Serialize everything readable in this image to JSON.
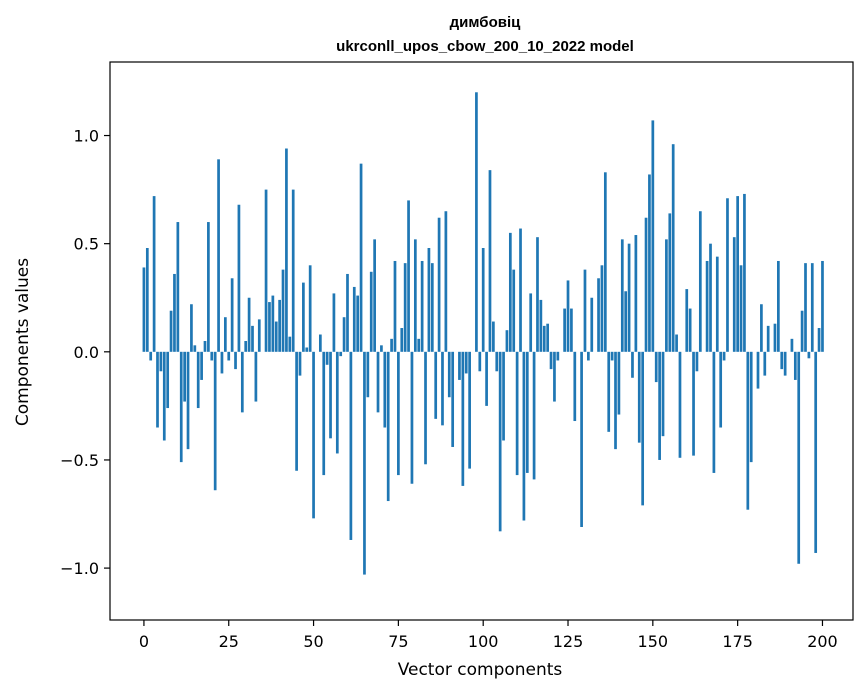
{
  "chart_data": {
    "type": "bar",
    "title": "димбовіц",
    "subtitle": "ukrconll_upos_cbow_200_10_2022 model",
    "xlabel": "Vector components",
    "ylabel": "Components values",
    "xlim": [
      -10,
      209
    ],
    "ylim": [
      -1.24,
      1.34
    ],
    "xticks": [
      0,
      25,
      50,
      75,
      100,
      125,
      150,
      175,
      200
    ],
    "yticks": [
      -1.0,
      -0.5,
      0.0,
      0.5,
      1.0
    ],
    "ytick_labels": [
      "−1.0",
      "−0.5",
      "0.0",
      "0.5",
      "1.0"
    ],
    "bar_color": "#1f77b4",
    "grid": false,
    "values": [
      0.39,
      0.48,
      -0.04,
      0.72,
      -0.35,
      -0.09,
      -0.41,
      -0.26,
      0.19,
      0.36,
      0.6,
      -0.51,
      -0.23,
      -0.45,
      0.22,
      0.03,
      -0.26,
      -0.13,
      0.05,
      0.6,
      -0.04,
      -0.64,
      0.89,
      -0.1,
      0.16,
      -0.04,
      0.34,
      -0.08,
      0.68,
      -0.28,
      0.05,
      0.25,
      0.12,
      -0.23,
      0.15,
      0.0,
      0.75,
      0.23,
      0.26,
      0.14,
      0.24,
      0.38,
      0.94,
      0.07,
      0.75,
      -0.55,
      -0.11,
      0.32,
      0.02,
      0.4,
      -0.77,
      0.0,
      0.08,
      -0.57,
      -0.06,
      -0.4,
      0.27,
      -0.47,
      -0.02,
      0.16,
      0.36,
      -0.87,
      0.3,
      0.26,
      0.87,
      -1.03,
      -0.21,
      0.37,
      0.52,
      -0.28,
      0.03,
      -0.35,
      -0.69,
      0.06,
      0.42,
      -0.57,
      0.11,
      0.41,
      0.7,
      -0.61,
      0.52,
      0.06,
      0.42,
      -0.52,
      0.48,
      0.41,
      -0.31,
      0.62,
      -0.34,
      0.65,
      -0.21,
      -0.44,
      0.0,
      -0.13,
      -0.62,
      -0.1,
      -0.54,
      0.0,
      1.2,
      -0.09,
      0.48,
      -0.25,
      0.84,
      0.14,
      -0.09,
      -0.83,
      -0.41,
      0.1,
      0.55,
      0.38,
      -0.57,
      0.57,
      -0.78,
      -0.56,
      0.27,
      -0.59,
      0.53,
      0.24,
      0.12,
      0.13,
      -0.08,
      -0.23,
      -0.04,
      0.0,
      0.2,
      0.33,
      0.2,
      -0.32,
      0.0,
      -0.81,
      0.38,
      -0.04,
      0.25,
      0.0,
      0.34,
      0.4,
      0.83,
      -0.37,
      -0.04,
      -0.45,
      -0.29,
      0.52,
      0.28,
      0.5,
      -0.12,
      0.54,
      -0.42,
      -0.71,
      0.62,
      0.82,
      1.07,
      -0.14,
      -0.5,
      -0.39,
      0.52,
      0.64,
      0.96,
      0.08,
      -0.49,
      0.0,
      0.29,
      0.2,
      -0.48,
      -0.09,
      0.65,
      0.0,
      0.42,
      0.5,
      -0.56,
      0.44,
      -0.35,
      -0.04,
      0.71,
      0.0,
      0.53,
      0.72,
      0.4,
      0.73,
      -0.73,
      -0.51,
      0.0,
      -0.17,
      0.22,
      -0.11,
      0.12,
      0.0,
      0.13,
      0.42,
      -0.08,
      -0.11,
      0.0,
      0.06,
      -0.13,
      -0.98,
      0.19,
      0.41,
      -0.03,
      0.41,
      -0.93,
      0.11,
      0.42
    ]
  }
}
